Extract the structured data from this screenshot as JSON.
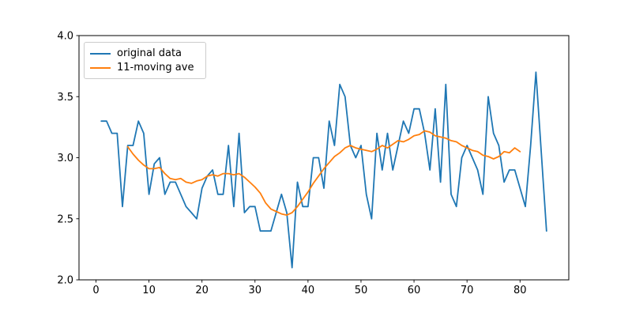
{
  "chart_data": {
    "type": "line",
    "title": "",
    "xlabel": "",
    "ylabel": "",
    "xlim": [
      -3.2,
      89.2
    ],
    "ylim": [
      2.0,
      4.0
    ],
    "xticks": [
      0,
      10,
      20,
      30,
      40,
      50,
      60,
      70,
      80
    ],
    "xtick_labels": [
      "0",
      "10",
      "20",
      "30",
      "40",
      "50",
      "60",
      "70",
      "80"
    ],
    "yticks": [
      2.0,
      2.5,
      3.0,
      3.5,
      4.0
    ],
    "ytick_labels": [
      "2.0",
      "2.5",
      "3.0",
      "3.5",
      "4.0"
    ],
    "grid": false,
    "spine_color": "#000000",
    "legend": {
      "position": "upper-left"
    },
    "series": [
      {
        "name": "original data",
        "color": "#1f77b4",
        "x": [
          1,
          2,
          3,
          4,
          5,
          6,
          7,
          8,
          9,
          10,
          11,
          12,
          13,
          14,
          15,
          16,
          17,
          18,
          19,
          20,
          21,
          22,
          23,
          24,
          25,
          26,
          27,
          28,
          29,
          30,
          31,
          32,
          33,
          34,
          35,
          36,
          37,
          38,
          39,
          40,
          41,
          42,
          43,
          44,
          45,
          46,
          47,
          48,
          49,
          50,
          51,
          52,
          53,
          54,
          55,
          56,
          57,
          58,
          59,
          60,
          61,
          62,
          63,
          64,
          65,
          66,
          67,
          68,
          69,
          70,
          71,
          72,
          73,
          74,
          75,
          76,
          77,
          78,
          79,
          80,
          81,
          82,
          83,
          84,
          85
        ],
        "values": [
          3.3,
          3.3,
          3.2,
          3.2,
          2.6,
          3.1,
          3.1,
          3.3,
          3.2,
          2.7,
          2.95,
          3.0,
          2.7,
          2.8,
          2.8,
          2.7,
          2.6,
          2.55,
          2.5,
          2.75,
          2.85,
          2.9,
          2.7,
          2.7,
          3.1,
          2.6,
          3.2,
          2.55,
          2.6,
          2.6,
          2.4,
          2.4,
          2.4,
          2.55,
          2.7,
          2.55,
          2.1,
          2.8,
          2.6,
          2.6,
          3.0,
          3.0,
          2.75,
          3.3,
          3.1,
          3.6,
          3.5,
          3.1,
          3.0,
          3.1,
          2.7,
          2.5,
          3.2,
          2.9,
          3.2,
          2.9,
          3.1,
          3.3,
          3.2,
          3.4,
          3.4,
          3.2,
          2.9,
          3.4,
          2.8,
          3.6,
          2.7,
          2.6,
          3.0,
          3.1,
          3.0,
          2.9,
          2.7,
          3.5,
          3.2,
          3.1,
          2.8,
          2.9,
          2.9,
          2.75,
          2.6,
          3.1,
          3.7,
          3.05,
          2.4
        ]
      },
      {
        "name": "11-moving ave",
        "color": "#ff7f0e",
        "x": [
          6,
          7,
          8,
          9,
          10,
          11,
          12,
          13,
          14,
          15,
          16,
          17,
          18,
          19,
          20,
          21,
          22,
          23,
          24,
          25,
          26,
          27,
          28,
          29,
          30,
          31,
          32,
          33,
          34,
          35,
          36,
          37,
          38,
          39,
          40,
          41,
          42,
          43,
          44,
          45,
          46,
          47,
          48,
          49,
          50,
          51,
          52,
          53,
          54,
          55,
          56,
          57,
          58,
          59,
          60,
          61,
          62,
          63,
          64,
          65,
          66,
          67,
          68,
          69,
          70,
          71,
          72,
          73,
          74,
          75,
          76,
          77,
          78,
          79,
          80
        ],
        "values": [
          3.09,
          3.03,
          2.98,
          2.94,
          2.91,
          2.91,
          2.92,
          2.87,
          2.83,
          2.82,
          2.83,
          2.8,
          2.79,
          2.81,
          2.82,
          2.85,
          2.86,
          2.85,
          2.87,
          2.87,
          2.86,
          2.87,
          2.84,
          2.8,
          2.76,
          2.71,
          2.63,
          2.58,
          2.56,
          2.54,
          2.53,
          2.55,
          2.6,
          2.66,
          2.72,
          2.79,
          2.85,
          2.91,
          2.96,
          3.01,
          3.04,
          3.08,
          3.1,
          3.08,
          3.07,
          3.06,
          3.05,
          3.07,
          3.1,
          3.08,
          3.11,
          3.14,
          3.13,
          3.15,
          3.18,
          3.19,
          3.22,
          3.21,
          3.18,
          3.17,
          3.16,
          3.14,
          3.13,
          3.1,
          3.08,
          3.06,
          3.05,
          3.02,
          3.01,
          2.99,
          3.01,
          3.05,
          3.04,
          3.08,
          3.05
        ]
      }
    ]
  }
}
